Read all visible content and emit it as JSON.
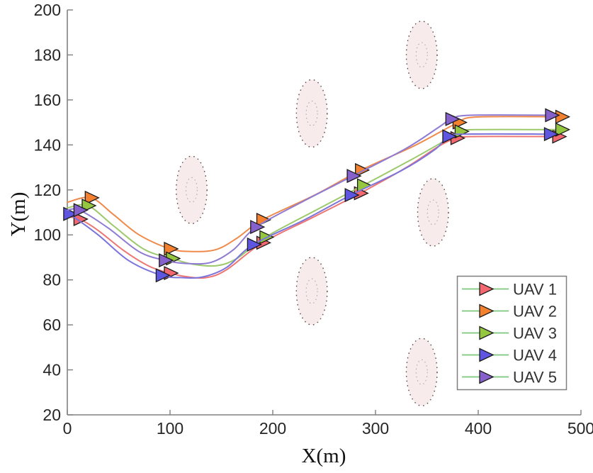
{
  "chart_data": {
    "type": "line",
    "title": "",
    "xlabel": "X(m)",
    "ylabel": "Y(m)",
    "xlim": [
      0,
      500
    ],
    "ylim": [
      20,
      200
    ],
    "xticks": [
      0,
      100,
      200,
      300,
      400,
      500
    ],
    "yticks": [
      20,
      40,
      60,
      80,
      100,
      120,
      140,
      160,
      180,
      200
    ],
    "grid": false,
    "axis_color": "#808080",
    "tick_label_color": "#262626",
    "marker_edge": "#1a1a1a",
    "series": [
      {
        "name": "UAV 1",
        "line_color": "#ee7672",
        "marker_color": "#f3686e",
        "path": [
          [
            0,
            108
          ],
          [
            12,
            107
          ],
          [
            30,
            102
          ],
          [
            55,
            93
          ],
          [
            80,
            86
          ],
          [
            100,
            83
          ],
          [
            115,
            81.5
          ],
          [
            135,
            81
          ],
          [
            155,
            84.5
          ],
          [
            190,
            96.5
          ],
          [
            240,
            108
          ],
          [
            285,
            118.5
          ],
          [
            330,
            130
          ],
          [
            362,
            139.5
          ],
          [
            379,
            143
          ],
          [
            392,
            143.7
          ],
          [
            478,
            143.7
          ]
        ],
        "markers": [
          [
            12,
            107
          ],
          [
            100,
            83
          ],
          [
            190,
            96.5
          ],
          [
            285,
            118.5
          ],
          [
            379,
            143
          ],
          [
            478,
            143.7
          ]
        ]
      },
      {
        "name": "UAV 2",
        "line_color": "#f08a4b",
        "marker_color": "#f4812f",
        "path": [
          [
            0,
            114.5
          ],
          [
            23,
            116.5
          ],
          [
            45,
            109
          ],
          [
            70,
            100
          ],
          [
            100,
            93.8
          ],
          [
            122,
            92.6
          ],
          [
            145,
            93.5
          ],
          [
            165,
            98.5
          ],
          [
            190,
            106.7
          ],
          [
            240,
            117.5
          ],
          [
            286,
            128.8
          ],
          [
            335,
            139
          ],
          [
            368,
            147
          ],
          [
            381,
            150
          ],
          [
            398,
            152.4
          ],
          [
            481,
            152.5
          ]
        ],
        "markers": [
          [
            23,
            116.5
          ],
          [
            100,
            93.8
          ],
          [
            190,
            106.7
          ],
          [
            286,
            128.8
          ],
          [
            381,
            150
          ],
          [
            481,
            152.5
          ]
        ]
      },
      {
        "name": "UAV 3",
        "line_color": "#9cc96b",
        "marker_color": "#94c73f",
        "path": [
          [
            0,
            112
          ],
          [
            20,
            113
          ],
          [
            45,
            104
          ],
          [
            75,
            93.5
          ],
          [
            102,
            89.5
          ],
          [
            122,
            87
          ],
          [
            145,
            86.3
          ],
          [
            165,
            89.5
          ],
          [
            193,
            99
          ],
          [
            240,
            110.5
          ],
          [
            288,
            122
          ],
          [
            335,
            133.5
          ],
          [
            368,
            142
          ],
          [
            383,
            146
          ],
          [
            397,
            146.8
          ],
          [
            481,
            146.8
          ]
        ],
        "markers": [
          [
            20,
            113
          ],
          [
            102,
            89.5
          ],
          [
            193,
            99
          ],
          [
            288,
            122
          ],
          [
            383,
            146
          ],
          [
            481,
            146.8
          ]
        ]
      },
      {
        "name": "UAV 4",
        "line_color": "#7b74dc",
        "marker_color": "#5e55e1",
        "path": [
          [
            0,
            109.5
          ],
          [
            2,
            109.3
          ],
          [
            30,
            100
          ],
          [
            60,
            88.5
          ],
          [
            92,
            82
          ],
          [
            112,
            81
          ],
          [
            132,
            81.3
          ],
          [
            155,
            85.5
          ],
          [
            181,
            95.7
          ],
          [
            230,
            106.5
          ],
          [
            276,
            117.7
          ],
          [
            325,
            128.5
          ],
          [
            358,
            138
          ],
          [
            371,
            143.8
          ],
          [
            388,
            144.8
          ],
          [
            470,
            144.8
          ]
        ],
        "markers": [
          [
            2,
            109.3
          ],
          [
            92,
            82
          ],
          [
            181,
            95.7
          ],
          [
            276,
            117.7
          ],
          [
            371,
            143.8
          ],
          [
            470,
            144.8
          ]
        ]
      },
      {
        "name": "UAV 5",
        "line_color": "#8f7bd3",
        "marker_color": "#8660cb",
        "path": [
          [
            0,
            111
          ],
          [
            12,
            111
          ],
          [
            40,
            103
          ],
          [
            70,
            92.5
          ],
          [
            95,
            88.7
          ],
          [
            115,
            87.3
          ],
          [
            140,
            87.8
          ],
          [
            162,
            93.5
          ],
          [
            184,
            103.5
          ],
          [
            230,
            115
          ],
          [
            278,
            126.2
          ],
          [
            330,
            138.5
          ],
          [
            362,
            148
          ],
          [
            374,
            151.5
          ],
          [
            392,
            153.2
          ],
          [
            471,
            153.2
          ]
        ],
        "markers": [
          [
            12,
            111
          ],
          [
            95,
            88.7
          ],
          [
            184,
            103.5
          ],
          [
            278,
            126.2
          ],
          [
            374,
            151.5
          ],
          [
            471,
            153.2
          ]
        ]
      }
    ],
    "threats": [
      {
        "cx": 121,
        "cy": 120,
        "r_outer": 15,
        "r_inner": 5.5
      },
      {
        "cx": 238,
        "cy": 154,
        "r_outer": 15,
        "r_inner": 5.5
      },
      {
        "cx": 345,
        "cy": 180,
        "r_outer": 15,
        "r_inner": 5.5
      },
      {
        "cx": 238,
        "cy": 75,
        "r_outer": 15,
        "r_inner": 5.5
      },
      {
        "cx": 356,
        "cy": 110,
        "r_outer": 15,
        "r_inner": 5.5
      },
      {
        "cx": 345,
        "cy": 39,
        "r_outer": 15,
        "r_inner": 5.5
      }
    ],
    "threat_style": {
      "fill": "#f7eceb",
      "outer_edge": "#5a4a4a",
      "inner_edge": "#bda4a4"
    },
    "legend": {
      "position": "bottom-right",
      "line_color": "#7ec87e",
      "border_color": "#7f7f7f",
      "text_color": "#333333",
      "entries": [
        "UAV 1",
        "UAV 2",
        "UAV 3",
        "UAV 4",
        "UAV 5"
      ]
    }
  }
}
